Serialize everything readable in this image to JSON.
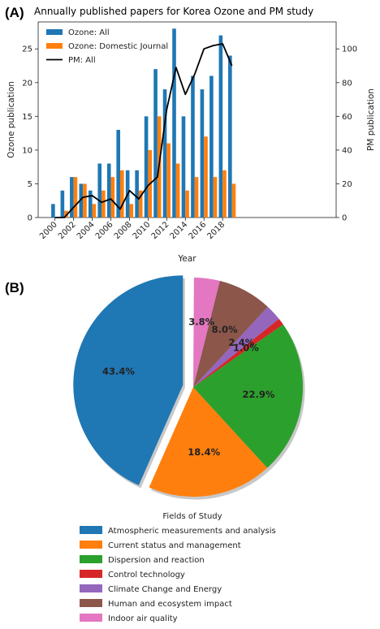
{
  "panel_a": {
    "label": "(A)"
  },
  "panel_b": {
    "label": "(B)"
  },
  "chart_data": [
    {
      "type": "bar",
      "title": "Annually published papers for Korea Ozone and PM study",
      "xlabel": "Year",
      "ylabel": "Ozone publication",
      "ylabel_right": "PM publication",
      "x": [
        2000,
        2001,
        2002,
        2003,
        2004,
        2005,
        2006,
        2007,
        2008,
        2009,
        2010,
        2011,
        2012,
        2013,
        2014,
        2015,
        2016,
        2017,
        2018,
        2019
      ],
      "xticks": [
        "2000",
        "2002",
        "2004",
        "2006",
        "2008",
        "2010",
        "2012",
        "2014",
        "2016",
        "2018"
      ],
      "ylim": [
        0,
        29
      ],
      "yticks": [
        0,
        5,
        10,
        15,
        20,
        25
      ],
      "ylim_right": [
        0,
        116
      ],
      "yticks_right": [
        0,
        20,
        40,
        60,
        80,
        100
      ],
      "legend_position": "top-left",
      "grid": false,
      "series": [
        {
          "name": "Ozone: All",
          "kind": "bar",
          "axis": "left",
          "color": "#1f77b4",
          "values": [
            2,
            4,
            6,
            5,
            4,
            8,
            8,
            13,
            7,
            7,
            15,
            22,
            19,
            28,
            15,
            21,
            19,
            21,
            27,
            24
          ]
        },
        {
          "name": "Ozone: Domestic Journal",
          "kind": "bar",
          "axis": "left",
          "color": "#ff7f0e",
          "values": [
            0,
            1,
            6,
            5,
            2,
            4,
            6,
            7,
            2,
            4,
            10,
            15,
            11,
            8,
            4,
            6,
            12,
            6,
            7,
            5
          ]
        },
        {
          "name": "PM: All",
          "kind": "line",
          "axis": "right",
          "color": "#000000",
          "values": [
            0,
            0,
            6,
            12,
            13,
            9,
            11,
            5,
            16,
            11,
            19,
            24,
            64,
            89,
            73,
            85,
            100,
            102,
            103,
            90
          ]
        }
      ]
    },
    {
      "type": "pie",
      "legend_title": "Fields of Study",
      "labels": [
        "Atmospheric measurements and analysis",
        "Current status and management",
        "Dispersion and reaction",
        "Control technology",
        "Climate Change and Energy",
        "Human and ecosystem impact",
        "Indoor air quality"
      ],
      "values": [
        43.4,
        18.4,
        22.9,
        1.0,
        2.4,
        8.0,
        3.8
      ],
      "value_labels": [
        "43.4%",
        "18.4%",
        "22.9%",
        "1.0%",
        "2.4%",
        "8.0%",
        "3.8%"
      ],
      "colors": [
        "#1f77b4",
        "#ff7f0e",
        "#2ca02c",
        "#d62728",
        "#9467bd",
        "#8c564b",
        "#e377c2"
      ],
      "exploded": [
        "Atmospheric measurements and analysis"
      ],
      "shadow": true
    }
  ]
}
